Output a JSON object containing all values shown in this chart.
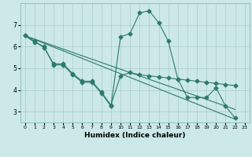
{
  "xlabel": "Humidex (Indice chaleur)",
  "bg_color": "#cce8e8",
  "grid_color": "#aacccc",
  "line_color": "#2d7a6e",
  "xlim": [
    -0.5,
    23.5
  ],
  "ylim": [
    2.5,
    8.0
  ],
  "xticks": [
    0,
    1,
    2,
    3,
    4,
    5,
    6,
    7,
    8,
    9,
    10,
    11,
    12,
    13,
    14,
    15,
    16,
    17,
    18,
    19,
    20,
    21,
    22,
    23
  ],
  "yticks": [
    3,
    4,
    5,
    6,
    7
  ],
  "line1_x": [
    0,
    1,
    2,
    3,
    4,
    5,
    6,
    7,
    8,
    9,
    10,
    11,
    12,
    13,
    14,
    15,
    16,
    17,
    18,
    19,
    20,
    21,
    22
  ],
  "line1_y": [
    6.5,
    6.2,
    6.0,
    5.15,
    5.15,
    4.7,
    4.35,
    4.35,
    3.85,
    3.25,
    6.45,
    6.6,
    7.55,
    7.65,
    7.1,
    6.25,
    4.5,
    3.65,
    3.65,
    3.65,
    4.1,
    3.25,
    2.7
  ],
  "line2_x": [
    0,
    1,
    2,
    3,
    4,
    5,
    6,
    7,
    8,
    9,
    10,
    11,
    12,
    13,
    14,
    15,
    16,
    17,
    18,
    19,
    20,
    21,
    22
  ],
  "line2_y": [
    6.5,
    6.25,
    5.95,
    5.2,
    5.2,
    4.75,
    4.4,
    4.4,
    3.9,
    3.3,
    4.65,
    4.8,
    4.7,
    4.65,
    4.6,
    4.55,
    4.5,
    4.45,
    4.4,
    4.35,
    4.3,
    4.25,
    4.2
  ],
  "line3_x": [
    0,
    22
  ],
  "line3_y": [
    6.5,
    2.65
  ],
  "line4_x": [
    0,
    22
  ],
  "line4_y": [
    6.5,
    3.1
  ],
  "xlabel_fontsize": 6.5,
  "tick_fontsize_x": 4.5,
  "tick_fontsize_y": 5.5
}
